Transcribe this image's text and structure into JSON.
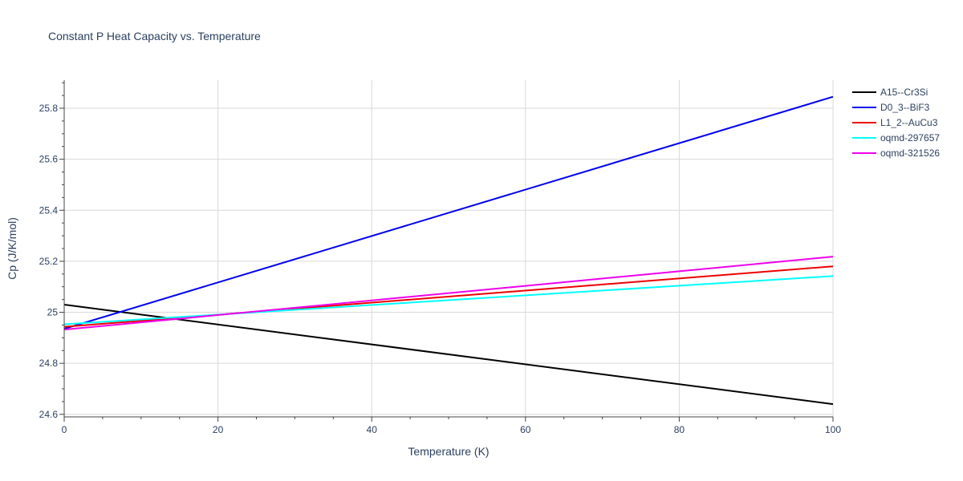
{
  "chart_data": {
    "type": "line",
    "title": "Constant P Heat Capacity vs. Temperature",
    "xlabel": "Temperature (K)",
    "ylabel": "Cp (J/K/mol)",
    "xlim": [
      0,
      100
    ],
    "ylim": [
      24.59,
      25.91
    ],
    "x_ticks": [
      0,
      20,
      40,
      60,
      80,
      100
    ],
    "y_ticks": [
      24.6,
      24.8,
      25,
      25.2,
      25.4,
      25.6,
      25.8
    ],
    "x_tick_labels": [
      "0",
      "20",
      "40",
      "60",
      "80",
      "100"
    ],
    "y_tick_labels": [
      "24.6",
      "24.8",
      "25",
      "25.2",
      "25.4",
      "25.6",
      "25.8"
    ],
    "grid": true,
    "legend_position": "top-right",
    "series": [
      {
        "name": "A15--Cr3Si",
        "color": "#000000",
        "x": [
          0,
          100
        ],
        "y": [
          25.03,
          24.64
        ]
      },
      {
        "name": "D0_3--BiF3",
        "color": "#0000ee",
        "x": [
          0,
          100
        ],
        "y": [
          24.935,
          25.845
        ]
      },
      {
        "name": "L1_2--AuCu3",
        "color": "#ee0000",
        "x": [
          0,
          100
        ],
        "y": [
          24.943,
          25.18
        ]
      },
      {
        "name": "oqmd-297657",
        "color": "#00ffff",
        "x": [
          0,
          100
        ],
        "y": [
          24.953,
          25.142
        ]
      },
      {
        "name": "oqmd-321526",
        "color": "#ee00ee",
        "x": [
          0,
          100
        ],
        "y": [
          24.932,
          25.218
        ]
      }
    ]
  }
}
